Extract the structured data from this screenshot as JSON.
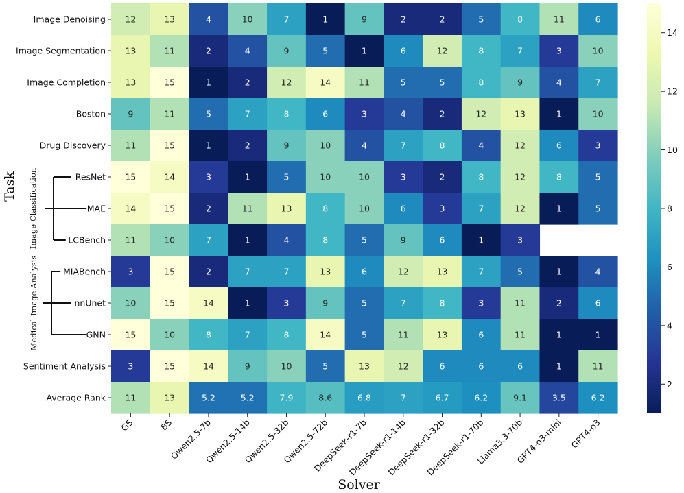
{
  "chart_data": {
    "type": "heatmap",
    "xlabel": "Solver",
    "ylabel": "Task",
    "x_categories": [
      "GS",
      "BS",
      "Qwen2.5-7b",
      "Qwen2.5-14b",
      "Qwen2.5-32b",
      "Qwen2.5-72b",
      "DeepSeek-r1-7b",
      "DeepSeek-r1-14b",
      "DeepSeek-r1-32b",
      "DeepSeek-r1-70b",
      "Llama3.3-70b",
      "GPT4-o3-mini",
      "GPT4-o3"
    ],
    "y_categories": [
      "Image Denoising",
      "Image Segmentation",
      "Image Completion",
      "Boston",
      "Drug Discovery",
      "ResNet",
      "MAE",
      "LCBench",
      "MIABench",
      "nnUnet",
      "GNN",
      "Sentiment Analysis",
      "Average Rank"
    ],
    "values": [
      [
        12,
        13,
        4,
        10,
        7,
        1,
        9,
        2,
        2,
        5,
        8,
        11,
        6
      ],
      [
        13,
        11,
        2,
        4,
        9,
        5,
        1,
        6,
        12,
        8,
        7,
        3,
        10
      ],
      [
        13,
        15,
        1,
        2,
        12,
        14,
        11,
        5,
        5,
        8,
        9,
        4,
        7
      ],
      [
        9,
        11,
        5,
        7,
        8,
        6,
        3,
        4,
        2,
        12,
        13,
        1,
        10
      ],
      [
        11,
        15,
        1,
        2,
        9,
        10,
        4,
        7,
        8,
        4,
        12,
        6,
        3
      ],
      [
        15,
        14,
        3,
        1,
        5,
        10,
        10,
        3,
        2,
        8,
        12,
        8,
        5
      ],
      [
        14,
        15,
        2,
        11,
        13,
        8,
        10,
        6,
        3,
        7,
        12,
        1,
        5
      ],
      [
        11,
        10,
        7,
        1,
        4,
        8,
        5,
        9,
        6,
        1,
        3,
        null,
        null
      ],
      [
        3,
        15,
        2,
        7,
        7,
        13,
        6,
        12,
        13,
        7,
        5,
        1,
        4
      ],
      [
        10,
        15,
        14,
        1,
        3,
        9,
        5,
        7,
        8,
        3,
        11,
        2,
        6
      ],
      [
        15,
        10,
        8,
        7,
        8,
        14,
        5,
        11,
        13,
        6,
        11,
        1,
        1
      ],
      [
        3,
        15,
        14,
        9,
        10,
        5,
        13,
        12,
        6,
        6,
        6,
        1,
        11
      ],
      [
        11,
        13,
        5.2,
        5.2,
        7.9,
        8.6,
        6.8,
        7,
        6.7,
        6.2,
        9.1,
        3.5,
        6.2
      ]
    ],
    "color_range": [
      1,
      15
    ],
    "colormap": "YlGnBu_r",
    "colorbar_ticks": [
      2,
      4,
      6,
      8,
      10,
      12,
      14
    ],
    "groups": [
      {
        "label": "Image Classification",
        "members": [
          "ResNet",
          "MAE",
          "LCBench"
        ]
      },
      {
        "label": "Medical Image Analysis",
        "members": [
          "MIABench",
          "nnUnet",
          "GNN"
        ]
      }
    ]
  }
}
